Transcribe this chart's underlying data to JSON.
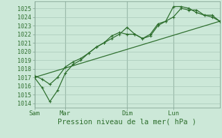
{
  "background_color": "#cce8d8",
  "plot_bg_color": "#cce8d8",
  "line_color": "#2d6e2d",
  "grid_color": "#a8c8b8",
  "vline_color": "#7a9a8a",
  "xlabel": "Pression niveau de la mer( hPa )",
  "ylim": [
    1013.5,
    1025.8
  ],
  "yticks": [
    1014,
    1015,
    1016,
    1017,
    1018,
    1019,
    1020,
    1021,
    1022,
    1023,
    1024,
    1025
  ],
  "day_labels": [
    "Sam",
    "Mar",
    "Dim",
    "Lun"
  ],
  "day_positions": [
    0,
    48,
    144,
    216
  ],
  "xlim": [
    0,
    288
  ],
  "line1_x": [
    0,
    12,
    24,
    36,
    48,
    60,
    72,
    84,
    96,
    108,
    120,
    132,
    144,
    156,
    168,
    180,
    192,
    204,
    216,
    228,
    240,
    252,
    264,
    276,
    288
  ],
  "line1_y": [
    1017.2,
    1016.8,
    1016.2,
    1017.0,
    1018.2,
    1018.8,
    1019.2,
    1019.8,
    1020.5,
    1021.0,
    1021.5,
    1022.0,
    1022.8,
    1022.0,
    1021.5,
    1021.8,
    1023.0,
    1023.5,
    1024.0,
    1025.0,
    1024.8,
    1024.8,
    1024.2,
    1024.0,
    1023.5
  ],
  "line2_x": [
    0,
    12,
    24,
    36,
    48,
    60,
    72,
    84,
    96,
    108,
    120,
    132,
    144,
    156,
    168,
    180,
    192,
    204,
    216,
    228,
    240,
    252,
    264,
    276,
    288
  ],
  "line2_y": [
    1017.0,
    1015.8,
    1014.2,
    1015.5,
    1017.5,
    1018.5,
    1019.0,
    1019.8,
    1020.5,
    1021.0,
    1021.8,
    1022.2,
    1022.0,
    1022.0,
    1021.5,
    1022.0,
    1023.2,
    1023.5,
    1025.2,
    1025.2,
    1025.0,
    1024.5,
    1024.2,
    1024.2,
    1023.5
  ],
  "line3_x": [
    0,
    288
  ],
  "line3_y": [
    1017.0,
    1023.5
  ]
}
